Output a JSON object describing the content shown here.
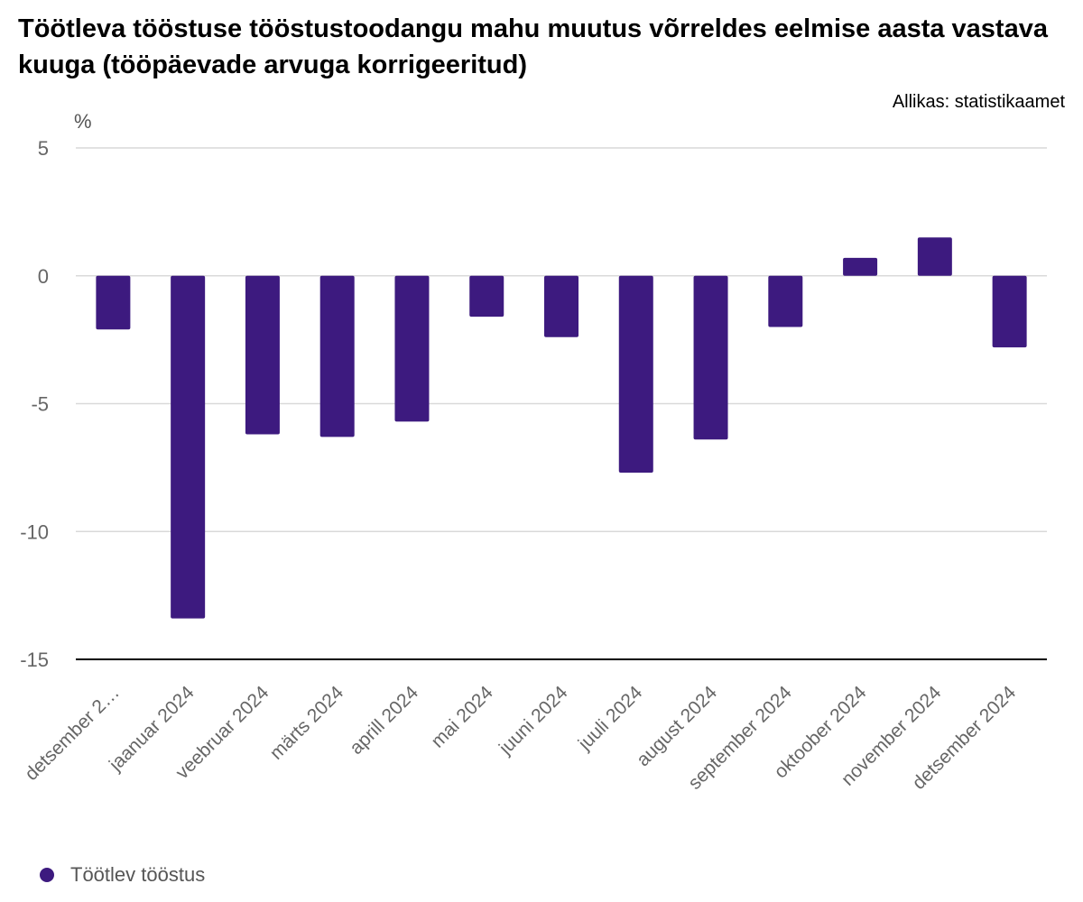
{
  "title": "Töötleva tööstuse tööstustoodangu mahu muutus võrreldes eelmise aasta vastava kuuga (tööpäevade arvuga korrigeeritud)",
  "source": "Allikas: statistikaamet",
  "colors": {
    "bar": "#3d1a7f",
    "grid": "#d9d9d9",
    "axis": "#000000",
    "tick": "#666666"
  },
  "chart_data": {
    "type": "bar",
    "title": "Töötleva tööstuse tööstustoodangu mahu muutus võrreldes eelmise aasta vastava kuuga (tööpäevade arvuga korrigeeritud)",
    "ylabel": "%",
    "xlabel": "",
    "ylim": [
      -15,
      5
    ],
    "yticks": [
      5,
      0,
      -5,
      -10,
      -15
    ],
    "ytick_labels": [
      "5",
      "0",
      "-5",
      "-10",
      "-15"
    ],
    "grid": true,
    "legend_position": "bottom-left",
    "categories": [
      "detsember 2023",
      "jaanuar 2024",
      "veebruar 2024",
      "märts 2024",
      "aprill 2024",
      "mai 2024",
      "juuni 2024",
      "juuli 2024",
      "august 2024",
      "september 2024",
      "oktoober 2024",
      "november 2024",
      "detsember 2024"
    ],
    "category_labels": [
      "detsember 2…",
      "jaanuar 2024",
      "veebruar 2024",
      "märts 2024",
      "aprill 2024",
      "mai 2024",
      "juuni 2024",
      "juuli 2024",
      "august 2024",
      "september 2024",
      "oktoober 2024",
      "november 2024",
      "detsember 2024"
    ],
    "series": [
      {
        "name": "Töötlev tööstus",
        "values": [
          -2.1,
          -13.4,
          -6.2,
          -6.3,
          -5.7,
          -1.6,
          -2.4,
          -7.7,
          -6.4,
          -2.0,
          0.7,
          1.5,
          -2.8
        ]
      }
    ]
  }
}
